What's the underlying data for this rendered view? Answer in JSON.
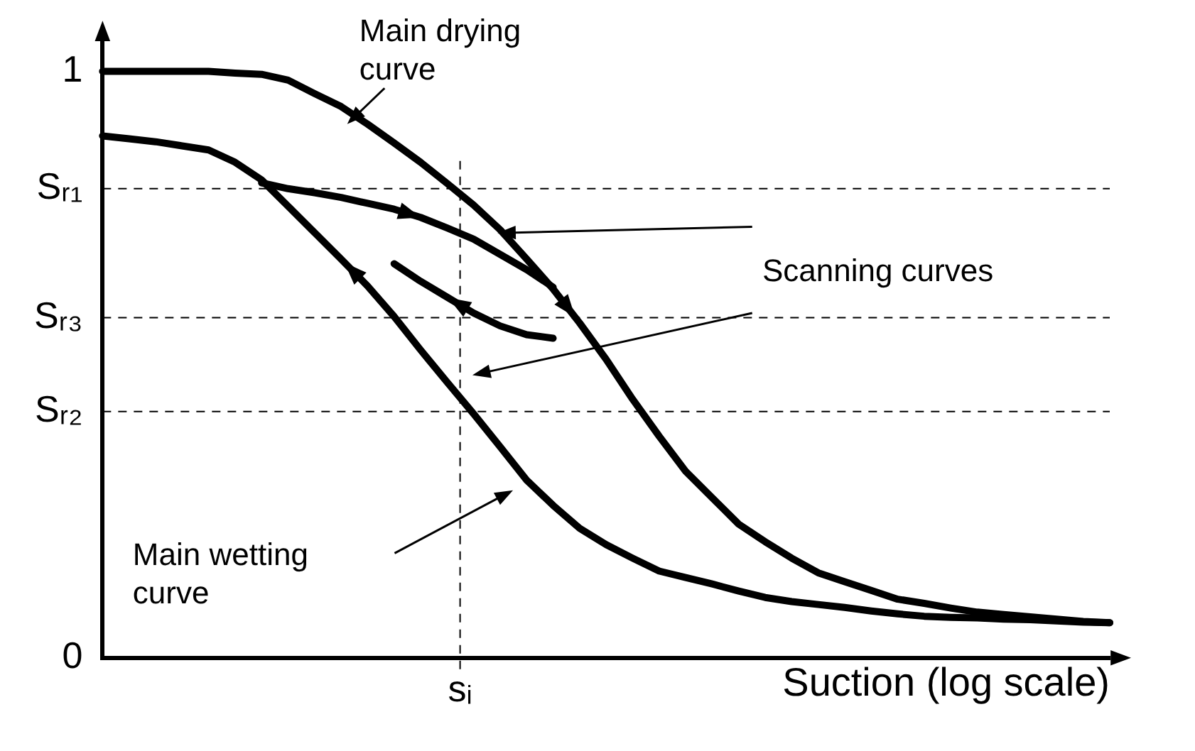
{
  "chart_data": {
    "type": "line",
    "xlabel": "Suction (log scale)",
    "categories": [
      null,
      null,
      null,
      null,
      null,
      null,
      null,
      null,
      null,
      null,
      null,
      null,
      null,
      null,
      null,
      null,
      null,
      null,
      null,
      null,
      null,
      null,
      null,
      null,
      null,
      null,
      null,
      null,
      null,
      null,
      null,
      null,
      null,
      null,
      null,
      null,
      null,
      null,
      null
    ],
    "ylim": [
      0,
      1.05
    ],
    "yticks": [
      {
        "value": 0,
        "label": "0"
      },
      {
        "value": 0.42,
        "label": "Sᵣ₂"
      },
      {
        "value": 0.58,
        "label": "Sᵣ₃"
      },
      {
        "value": 0.8,
        "label": "Sᵣ₁"
      },
      {
        "value": 1,
        "label": "1"
      }
    ],
    "grid": false,
    "legend": false,
    "marker": "none",
    "line_style": "solid",
    "series": [
      {
        "color": "#000000",
        "values": [
          1.0,
          1.0,
          1.0,
          1.0,
          1.0,
          0.997,
          0.995,
          0.985,
          0.962,
          0.94,
          0.91,
          0.878,
          0.845,
          0.809,
          0.772,
          0.73,
          0.68,
          0.629,
          0.571,
          0.509,
          0.441,
          0.378,
          0.318,
          0.273,
          0.228,
          0.198,
          0.17,
          0.145,
          0.13,
          0.115,
          0.1,
          0.093,
          0.085,
          0.078,
          0.074,
          0.07,
          0.066,
          0.062,
          0.06
        ]
      },
      {
        "color": "#000000",
        "values": [
          0.89,
          0.885,
          0.88,
          0.873,
          0.866,
          0.845,
          0.815,
          0.77,
          0.725,
          0.68,
          0.634,
          0.582,
          0.525,
          0.47,
          0.416,
          0.36,
          0.303,
          0.26,
          0.221,
          0.193,
          0.17,
          0.148,
          0.137,
          0.126,
          0.114,
          0.103,
          0.096,
          0.091,
          0.086,
          0.08,
          0.075,
          0.071,
          0.069,
          0.068,
          0.066,
          0.065,
          0.063,
          0.061,
          0.06
        ]
      },
      {
        "color": "#000000",
        "values": [
          null,
          null,
          null,
          null,
          null,
          null,
          0.81,
          0.8,
          0.793,
          0.785,
          0.775,
          0.765,
          0.751,
          0.733,
          0.714,
          0.688,
          0.662,
          0.632,
          null,
          null,
          null,
          null,
          null,
          null,
          null,
          null,
          null,
          null,
          null,
          null,
          null,
          null,
          null,
          null,
          null,
          null,
          null,
          null,
          null
        ]
      },
      {
        "color": "#000000",
        "values": [
          null,
          null,
          null,
          null,
          null,
          null,
          null,
          null,
          null,
          null,
          null,
          0.672,
          0.642,
          0.615,
          0.588,
          0.566,
          0.551,
          0.545,
          null,
          null,
          null,
          null,
          null,
          null,
          null,
          null,
          null,
          null,
          null,
          null,
          null,
          null,
          null,
          null,
          null,
          null,
          null,
          null,
          null
        ]
      }
    ],
    "ref_lines": [
      {
        "axis": "y",
        "value": 0.8,
        "line_style": "dashed",
        "color": "#000000"
      },
      {
        "axis": "y",
        "value": 0.58,
        "line_style": "dashed",
        "color": "#000000"
      },
      {
        "axis": "y",
        "value": 0.42,
        "line_style": "dashed",
        "color": "#000000"
      }
    ],
    "annotations": [
      "Main drying curve",
      "Main wetting curve",
      "Scanning curves",
      "sᵢ"
    ]
  }
}
